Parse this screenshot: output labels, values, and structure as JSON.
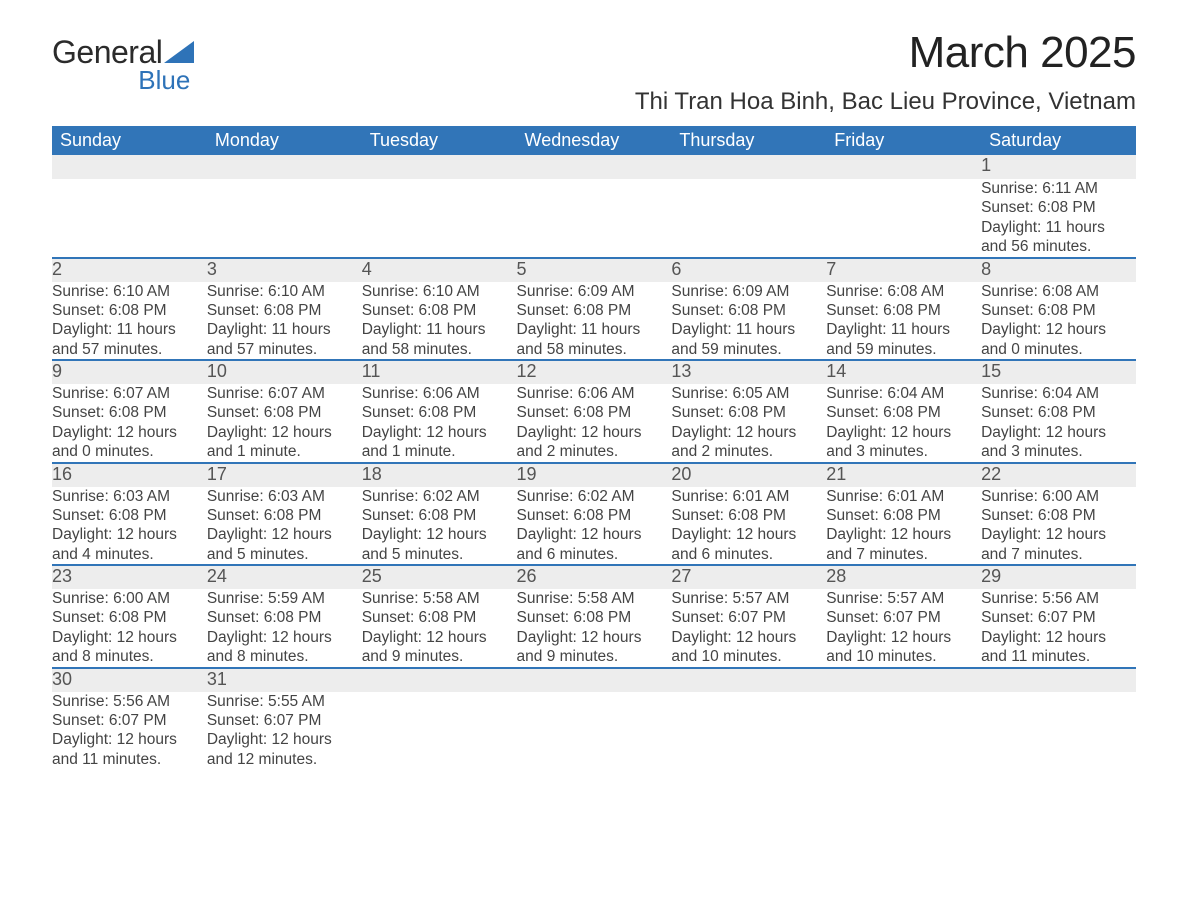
{
  "logo": {
    "text_main": "General",
    "text_sub": "Blue",
    "brand_color": "#2e73b8"
  },
  "title": "March 2025",
  "location": "Thi Tran Hoa Binh, Bac Lieu Province, Vietnam",
  "colors": {
    "header_bg": "#3175b8",
    "header_text": "#ffffff",
    "daynum_bg": "#ededed",
    "row_border": "#3175b8",
    "body_text": "#444444",
    "page_bg": "#ffffff"
  },
  "typography": {
    "title_fontsize": 44,
    "location_fontsize": 24,
    "header_fontsize": 18,
    "cell_fontsize": 15.5
  },
  "weekdays": [
    "Sunday",
    "Monday",
    "Tuesday",
    "Wednesday",
    "Thursday",
    "Friday",
    "Saturday"
  ],
  "weeks": [
    [
      null,
      null,
      null,
      null,
      null,
      null,
      {
        "d": "1",
        "sr": "Sunrise: 6:11 AM",
        "ss": "Sunset: 6:08 PM",
        "dl1": "Daylight: 11 hours",
        "dl2": "and 56 minutes."
      }
    ],
    [
      {
        "d": "2",
        "sr": "Sunrise: 6:10 AM",
        "ss": "Sunset: 6:08 PM",
        "dl1": "Daylight: 11 hours",
        "dl2": "and 57 minutes."
      },
      {
        "d": "3",
        "sr": "Sunrise: 6:10 AM",
        "ss": "Sunset: 6:08 PM",
        "dl1": "Daylight: 11 hours",
        "dl2": "and 57 minutes."
      },
      {
        "d": "4",
        "sr": "Sunrise: 6:10 AM",
        "ss": "Sunset: 6:08 PM",
        "dl1": "Daylight: 11 hours",
        "dl2": "and 58 minutes."
      },
      {
        "d": "5",
        "sr": "Sunrise: 6:09 AM",
        "ss": "Sunset: 6:08 PM",
        "dl1": "Daylight: 11 hours",
        "dl2": "and 58 minutes."
      },
      {
        "d": "6",
        "sr": "Sunrise: 6:09 AM",
        "ss": "Sunset: 6:08 PM",
        "dl1": "Daylight: 11 hours",
        "dl2": "and 59 minutes."
      },
      {
        "d": "7",
        "sr": "Sunrise: 6:08 AM",
        "ss": "Sunset: 6:08 PM",
        "dl1": "Daylight: 11 hours",
        "dl2": "and 59 minutes."
      },
      {
        "d": "8",
        "sr": "Sunrise: 6:08 AM",
        "ss": "Sunset: 6:08 PM",
        "dl1": "Daylight: 12 hours",
        "dl2": "and 0 minutes."
      }
    ],
    [
      {
        "d": "9",
        "sr": "Sunrise: 6:07 AM",
        "ss": "Sunset: 6:08 PM",
        "dl1": "Daylight: 12 hours",
        "dl2": "and 0 minutes."
      },
      {
        "d": "10",
        "sr": "Sunrise: 6:07 AM",
        "ss": "Sunset: 6:08 PM",
        "dl1": "Daylight: 12 hours",
        "dl2": "and 1 minute."
      },
      {
        "d": "11",
        "sr": "Sunrise: 6:06 AM",
        "ss": "Sunset: 6:08 PM",
        "dl1": "Daylight: 12 hours",
        "dl2": "and 1 minute."
      },
      {
        "d": "12",
        "sr": "Sunrise: 6:06 AM",
        "ss": "Sunset: 6:08 PM",
        "dl1": "Daylight: 12 hours",
        "dl2": "and 2 minutes."
      },
      {
        "d": "13",
        "sr": "Sunrise: 6:05 AM",
        "ss": "Sunset: 6:08 PM",
        "dl1": "Daylight: 12 hours",
        "dl2": "and 2 minutes."
      },
      {
        "d": "14",
        "sr": "Sunrise: 6:04 AM",
        "ss": "Sunset: 6:08 PM",
        "dl1": "Daylight: 12 hours",
        "dl2": "and 3 minutes."
      },
      {
        "d": "15",
        "sr": "Sunrise: 6:04 AM",
        "ss": "Sunset: 6:08 PM",
        "dl1": "Daylight: 12 hours",
        "dl2": "and 3 minutes."
      }
    ],
    [
      {
        "d": "16",
        "sr": "Sunrise: 6:03 AM",
        "ss": "Sunset: 6:08 PM",
        "dl1": "Daylight: 12 hours",
        "dl2": "and 4 minutes."
      },
      {
        "d": "17",
        "sr": "Sunrise: 6:03 AM",
        "ss": "Sunset: 6:08 PM",
        "dl1": "Daylight: 12 hours",
        "dl2": "and 5 minutes."
      },
      {
        "d": "18",
        "sr": "Sunrise: 6:02 AM",
        "ss": "Sunset: 6:08 PM",
        "dl1": "Daylight: 12 hours",
        "dl2": "and 5 minutes."
      },
      {
        "d": "19",
        "sr": "Sunrise: 6:02 AM",
        "ss": "Sunset: 6:08 PM",
        "dl1": "Daylight: 12 hours",
        "dl2": "and 6 minutes."
      },
      {
        "d": "20",
        "sr": "Sunrise: 6:01 AM",
        "ss": "Sunset: 6:08 PM",
        "dl1": "Daylight: 12 hours",
        "dl2": "and 6 minutes."
      },
      {
        "d": "21",
        "sr": "Sunrise: 6:01 AM",
        "ss": "Sunset: 6:08 PM",
        "dl1": "Daylight: 12 hours",
        "dl2": "and 7 minutes."
      },
      {
        "d": "22",
        "sr": "Sunrise: 6:00 AM",
        "ss": "Sunset: 6:08 PM",
        "dl1": "Daylight: 12 hours",
        "dl2": "and 7 minutes."
      }
    ],
    [
      {
        "d": "23",
        "sr": "Sunrise: 6:00 AM",
        "ss": "Sunset: 6:08 PM",
        "dl1": "Daylight: 12 hours",
        "dl2": "and 8 minutes."
      },
      {
        "d": "24",
        "sr": "Sunrise: 5:59 AM",
        "ss": "Sunset: 6:08 PM",
        "dl1": "Daylight: 12 hours",
        "dl2": "and 8 minutes."
      },
      {
        "d": "25",
        "sr": "Sunrise: 5:58 AM",
        "ss": "Sunset: 6:08 PM",
        "dl1": "Daylight: 12 hours",
        "dl2": "and 9 minutes."
      },
      {
        "d": "26",
        "sr": "Sunrise: 5:58 AM",
        "ss": "Sunset: 6:08 PM",
        "dl1": "Daylight: 12 hours",
        "dl2": "and 9 minutes."
      },
      {
        "d": "27",
        "sr": "Sunrise: 5:57 AM",
        "ss": "Sunset: 6:07 PM",
        "dl1": "Daylight: 12 hours",
        "dl2": "and 10 minutes."
      },
      {
        "d": "28",
        "sr": "Sunrise: 5:57 AM",
        "ss": "Sunset: 6:07 PM",
        "dl1": "Daylight: 12 hours",
        "dl2": "and 10 minutes."
      },
      {
        "d": "29",
        "sr": "Sunrise: 5:56 AM",
        "ss": "Sunset: 6:07 PM",
        "dl1": "Daylight: 12 hours",
        "dl2": "and 11 minutes."
      }
    ],
    [
      {
        "d": "30",
        "sr": "Sunrise: 5:56 AM",
        "ss": "Sunset: 6:07 PM",
        "dl1": "Daylight: 12 hours",
        "dl2": "and 11 minutes."
      },
      {
        "d": "31",
        "sr": "Sunrise: 5:55 AM",
        "ss": "Sunset: 6:07 PM",
        "dl1": "Daylight: 12 hours",
        "dl2": "and 12 minutes."
      },
      null,
      null,
      null,
      null,
      null
    ]
  ]
}
